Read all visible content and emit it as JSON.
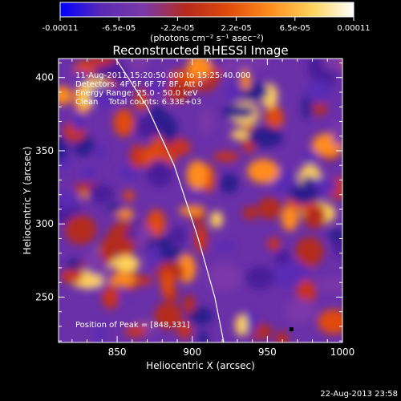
{
  "chart_data": {
    "type": "heatmap",
    "title": "Reconstructed RHESSI Image",
    "xlabel": "Heliocentric X (arcsec)",
    "ylabel": "Heliocentric Y (arcsec)",
    "xlim": [
      811,
      1000
    ],
    "ylim": [
      219,
      413
    ],
    "x_ticks": [
      "850",
      "900",
      "950",
      "1000"
    ],
    "y_ticks": [
      "250",
      "300",
      "350",
      "400"
    ],
    "colorbar": {
      "range": [
        -0.00011,
        0.00011
      ],
      "tick_labels": [
        "-0.00011",
        "-6.5e-05",
        "-2.2e-05",
        "2.2e-05",
        "6.5e-05",
        "0.00011"
      ],
      "unit_label": "(photons cm⁻² s⁻¹ asec⁻²)",
      "colormap": [
        "#0000ff",
        "#5a2ab4",
        "#7a39a8",
        "#b42a1e",
        "#e04a0a",
        "#ff8c1e",
        "#ffd25a",
        "#ffffff"
      ]
    },
    "annotations": {
      "time_range": "11-Aug-2011 15:20:50.000 to 15:25:40.000",
      "detectors": "Detectors: 4F 5F 6F 7F 8F, Att 0",
      "energy": "Energy Range: 25.0 - 50.0 keV",
      "method": "Clean    Total counts: 6.33E+03",
      "peak": "Position of Peak = [848,331]"
    },
    "peak_position": [
      848,
      331
    ],
    "peak_marker_position": [
      966,
      228
    ],
    "limb_curve": [
      [
        849,
        413
      ],
      [
        870,
        380
      ],
      [
        888,
        340
      ],
      [
        904,
        290
      ],
      [
        915,
        250
      ],
      [
        921,
        219
      ]
    ],
    "timestamp": "22-Aug-2013 23:58"
  }
}
